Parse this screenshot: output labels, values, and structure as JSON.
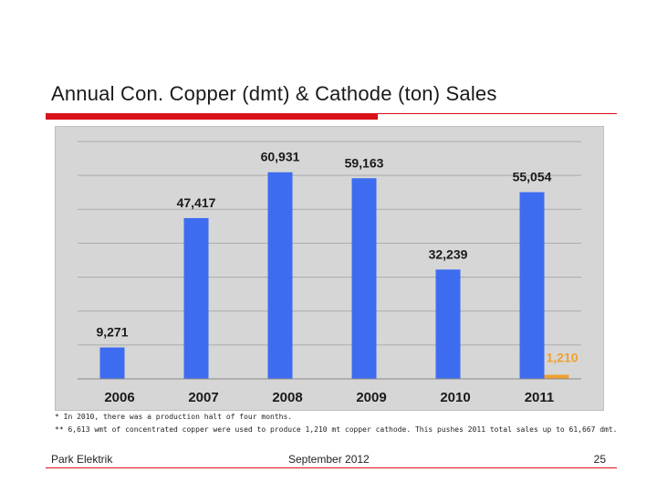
{
  "slide": {
    "title": "Annual Con. Copper (dmt) & Cathode (ton) Sales",
    "note1": "* In 2010, there was a production halt of four months.",
    "note2": "** 6,613 wmt of concentrated copper were used to produce 1,210 mt copper cathode. This pushes 2011 total sales up to 61,667 dmt.",
    "footer_left": "Park Elektrik",
    "footer_center": "September 2012",
    "footer_right": "25"
  },
  "colors": {
    "series_copper": "#3d6cf0",
    "series_cathode": "#f0a030",
    "cathode_label": "#f0a030",
    "accent_red": "#d8101a"
  },
  "chart_data": {
    "type": "bar",
    "title": "",
    "xlabel": "",
    "ylabel": "",
    "ylim": [
      0,
      70000
    ],
    "grid": true,
    "categories": [
      "2006",
      "2007",
      "2008",
      "2009",
      "2010",
      "2011"
    ],
    "series": [
      {
        "name": "Concentrated copper (dmt)",
        "values": [
          9271,
          47417,
          60931,
          59163,
          32239,
          55054
        ],
        "labels": [
          "9,271",
          "47,417",
          "60,931",
          "59,163",
          "32,239",
          "55,054"
        ]
      },
      {
        "name": "Copper cathode (ton)",
        "values": [
          null,
          null,
          null,
          null,
          null,
          1210
        ],
        "labels": [
          null,
          null,
          null,
          null,
          null,
          "1,210"
        ]
      }
    ]
  }
}
